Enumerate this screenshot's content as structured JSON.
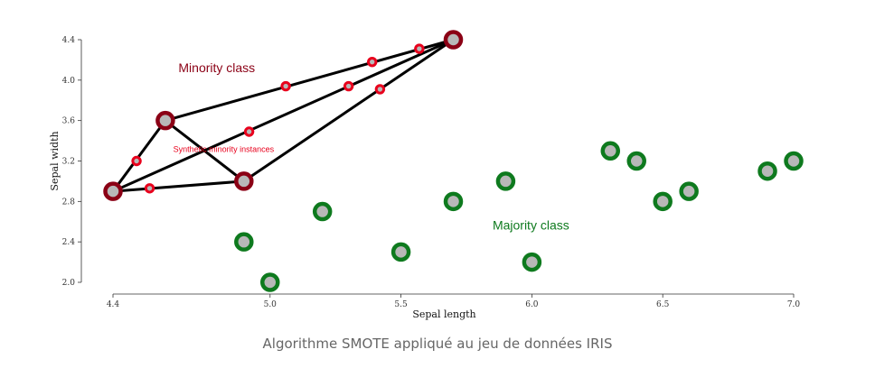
{
  "chart_data": {
    "type": "scatter",
    "title": "",
    "xlabel": "Sepal length",
    "ylabel": "Sepal width",
    "xlim": [
      4.4,
      7.0
    ],
    "ylim": [
      2.0,
      4.4
    ],
    "x_ticks": [
      "4.4",
      "5.0",
      "5.5",
      "6.0",
      "6.5",
      "7.0"
    ],
    "y_ticks": [
      "2.0",
      "2.4",
      "2.8",
      "3.2",
      "3.6",
      "4.0",
      "4.4"
    ],
    "grid": false,
    "series": [
      {
        "role": "minority",
        "points": [
          [
            4.4,
            2.9
          ],
          [
            4.6,
            3.6
          ],
          [
            4.9,
            3.0
          ],
          [
            5.7,
            4.4
          ]
        ]
      },
      {
        "role": "synthetic",
        "points": [
          [
            4.49,
            3.2
          ],
          [
            4.54,
            2.93
          ],
          [
            4.92,
            3.49
          ],
          [
            5.06,
            3.94
          ],
          [
            5.3,
            3.94
          ],
          [
            5.39,
            4.18
          ],
          [
            5.42,
            3.91
          ],
          [
            5.57,
            4.31
          ]
        ]
      },
      {
        "role": "majority",
        "points": [
          [
            4.9,
            2.4
          ],
          [
            5.0,
            2.0
          ],
          [
            5.2,
            2.7
          ],
          [
            5.5,
            2.3
          ],
          [
            5.7,
            2.8
          ],
          [
            5.9,
            3.0
          ],
          [
            6.0,
            2.2
          ],
          [
            6.3,
            3.3
          ],
          [
            6.4,
            3.2
          ],
          [
            6.5,
            2.8
          ],
          [
            6.6,
            2.9
          ],
          [
            6.9,
            3.1
          ],
          [
            7.0,
            3.2
          ]
        ]
      }
    ],
    "segments": [
      [
        [
          4.4,
          2.9
        ],
        [
          4.6,
          3.6
        ]
      ],
      [
        [
          4.4,
          2.9
        ],
        [
          4.9,
          3.0
        ]
      ],
      [
        [
          4.6,
          3.6
        ],
        [
          4.9,
          3.0
        ]
      ],
      [
        [
          4.4,
          2.9
        ],
        [
          5.7,
          4.4
        ]
      ],
      [
        [
          4.6,
          3.6
        ],
        [
          5.7,
          4.4
        ]
      ],
      [
        [
          4.9,
          3.0
        ],
        [
          5.7,
          4.4
        ]
      ]
    ],
    "annotations": [
      {
        "text": "Minority class",
        "x": 4.65,
        "y": 4.08,
        "role": "minority"
      },
      {
        "text": "Synthetic minority instances",
        "x": 4.63,
        "y": 3.29,
        "role": "synthetic"
      },
      {
        "text": "Majority class",
        "x": 5.85,
        "y": 2.52,
        "role": "majority"
      }
    ],
    "colors": {
      "minority_stroke": "#8b0015",
      "synthetic_stroke": "#e8001c",
      "majority_stroke": "#0e7a1e",
      "fill": "#b8b8b8",
      "segment": "#000000",
      "axis": "#333333"
    }
  },
  "caption": "Algorithme SMOTE appliqué au jeu de données IRIS"
}
